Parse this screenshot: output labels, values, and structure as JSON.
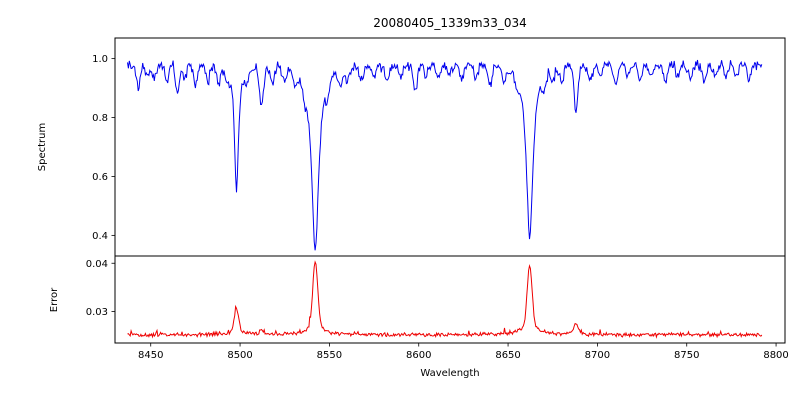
{
  "title": "20080405_1339m33_034",
  "chart_data": {
    "type": "line",
    "title": "20080405_1339m33_034",
    "xlabel": "Wavelength",
    "legend": "none",
    "grid": false,
    "noise_seed": 7,
    "x_axis": {
      "xlim": [
        8430,
        8805
      ],
      "data_min": 8437,
      "data_max": 8792,
      "step": 0.5,
      "ticks": [
        8450,
        8500,
        8550,
        8600,
        8650,
        8700,
        8750,
        8800
      ],
      "tick_labels": [
        "8450",
        "8500",
        "8550",
        "8600",
        "8650",
        "8700",
        "8750",
        "8800"
      ]
    },
    "panels": [
      {
        "ylabel": "Spectrum",
        "color": "#0000ee",
        "ylim": [
          0.33,
          1.07
        ],
        "yticks": [
          0.4,
          0.6,
          0.8,
          1.0
        ],
        "ytick_labels": [
          "0.4",
          "0.6",
          "0.8",
          "1.0"
        ],
        "continuum": 0.98,
        "noise_amplitude": 0.016,
        "minor_line_width": 1.1,
        "strong_lines": [
          {
            "center": 8498.0,
            "depth": 0.43,
            "width": 1.3
          },
          {
            "center": 8542.1,
            "depth": 0.63,
            "width": 2.4
          },
          {
            "center": 8662.1,
            "depth": 0.59,
            "width": 2.2
          }
        ],
        "minor_lines": [
          [
            8443,
            0.08
          ],
          [
            8448,
            0.04
          ],
          [
            8452,
            0.05
          ],
          [
            8459,
            0.05
          ],
          [
            8465,
            0.1
          ],
          [
            8469,
            0.05
          ],
          [
            8475,
            0.07
          ],
          [
            8482,
            0.05
          ],
          [
            8488,
            0.06
          ],
          [
            8493,
            0.04
          ],
          [
            8504,
            0.05
          ],
          [
            8512,
            0.14
          ],
          [
            8518,
            0.06
          ],
          [
            8525,
            0.05
          ],
          [
            8531,
            0.04
          ],
          [
            8536,
            0.05
          ],
          [
            8549,
            0.05
          ],
          [
            8556,
            0.06
          ],
          [
            8560,
            0.04
          ],
          [
            8568,
            0.05
          ],
          [
            8575,
            0.04
          ],
          [
            8582,
            0.05
          ],
          [
            8590,
            0.04
          ],
          [
            8598,
            0.09
          ],
          [
            8604,
            0.04
          ],
          [
            8611,
            0.05
          ],
          [
            8617,
            0.04
          ],
          [
            8624,
            0.05
          ],
          [
            8632,
            0.04
          ],
          [
            8640,
            0.06
          ],
          [
            8648,
            0.05
          ],
          [
            8655,
            0.04
          ],
          [
            8670,
            0.05
          ],
          [
            8675,
            0.04
          ],
          [
            8680,
            0.05
          ],
          [
            8688,
            0.15
          ],
          [
            8696,
            0.05
          ],
          [
            8702,
            0.04
          ],
          [
            8710,
            0.06
          ],
          [
            8717,
            0.04
          ],
          [
            8724,
            0.05
          ],
          [
            8730,
            0.04
          ],
          [
            8738,
            0.06
          ],
          [
            8745,
            0.04
          ],
          [
            8752,
            0.05
          ],
          [
            8760,
            0.06
          ],
          [
            8766,
            0.04
          ],
          [
            8772,
            0.05
          ],
          [
            8778,
            0.04
          ],
          [
            8785,
            0.05
          ]
        ],
        "key_points": {
          "continuum_level": 0.98,
          "absorption_minima": [
            {
              "wavelength": 8498,
              "flux": 0.56
            },
            {
              "wavelength": 8542,
              "flux": 0.35
            },
            {
              "wavelength": 8662,
              "flux": 0.39
            }
          ]
        }
      },
      {
        "ylabel": "Error",
        "color": "#ee0000",
        "ylim": [
          0.0235,
          0.0415
        ],
        "yticks": [
          0.03,
          0.04
        ],
        "ytick_labels": [
          "0.03",
          "0.04"
        ],
        "baseline": 0.0252,
        "noise_amplitude": 0.0005,
        "peaks": [
          {
            "center": 8498.0,
            "amp": 0.0051,
            "width": 1.2
          },
          {
            "center": 8512.0,
            "amp": 0.0009,
            "width": 1.2
          },
          {
            "center": 8542.1,
            "amp": 0.0153,
            "width": 1.3
          },
          {
            "center": 8662.1,
            "amp": 0.0145,
            "width": 1.3
          },
          {
            "center": 8688.0,
            "amp": 0.002,
            "width": 1.4
          }
        ],
        "key_points": {
          "baseline_level": 0.025,
          "error_peaks": [
            {
              "wavelength": 8498,
              "error": 0.031
            },
            {
              "wavelength": 8542,
              "error": 0.041
            },
            {
              "wavelength": 8662,
              "error": 0.04
            }
          ]
        }
      }
    ],
    "line_colors": {
      "spectrum": "#0000ee",
      "error": "#ee0000"
    }
  }
}
